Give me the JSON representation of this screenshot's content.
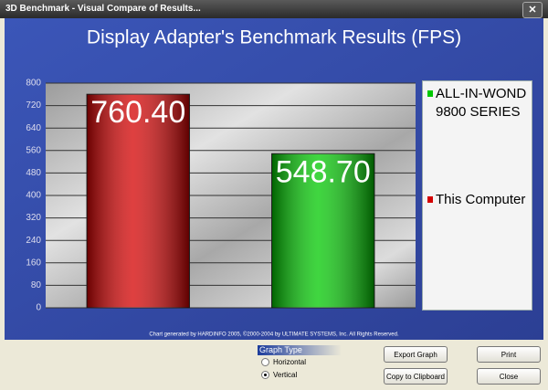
{
  "window": {
    "title": "3D Benchmark - Visual Compare of Results..."
  },
  "chart_data": {
    "type": "bar",
    "title": "Display Adapter's Benchmark Results (FPS)",
    "series": [
      {
        "name": "This Computer",
        "color": "#d40000",
        "values": [
          760.4
        ],
        "value_labels": [
          "760.40"
        ]
      },
      {
        "name": "ALL-IN-WOND 9800 SERIES",
        "color": "#00c800",
        "values": [
          548.7
        ],
        "value_labels": [
          "548.70"
        ]
      }
    ],
    "ylim": [
      0,
      800
    ],
    "yticks": [
      0,
      80,
      160,
      240,
      320,
      400,
      480,
      560,
      640,
      720,
      800
    ],
    "grid": true,
    "footnote": "Chart generated by HARDINFO 2005, ©2000-2004 by ULTIMATE SYSTEMS, Inc. All Rights Reserved."
  },
  "controls": {
    "graph_type_label": "Graph Type",
    "radio_options": [
      "Horizontal",
      "Vertical"
    ],
    "selected": "Vertical",
    "buttons": [
      "Export Graph",
      "Copy to Clipboard",
      "Print",
      "Close"
    ]
  }
}
